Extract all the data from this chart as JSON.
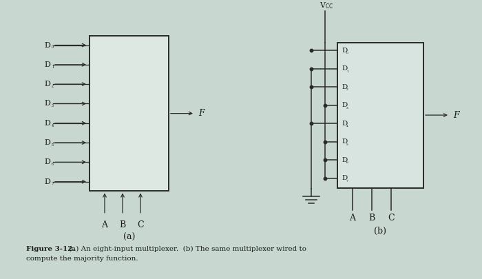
{
  "bg_color": "#c8d8d0",
  "box_face_a": "#dde8e2",
  "box_face_b": "#d8e4e0",
  "line_color": "#2a2a2a",
  "text_color": "#1a1a1a",
  "fig_width": 7.0,
  "fig_height": 4.05,
  "inputs": [
    "D₀",
    "D₁",
    "D₂",
    "D₃",
    "D₄",
    "D₅",
    "D₆",
    "D₇"
  ],
  "sel_labels": [
    "A",
    "B",
    "C"
  ],
  "vcc_inputs": [
    3,
    5,
    6,
    7
  ],
  "gnd_inputs": [
    0,
    1,
    2,
    4
  ],
  "caption_bold": "Figure 3-12.",
  "caption_normal": "  (a) An eight-input multiplexer.  (b) The same multiplexer wired to\ncompute the majority function."
}
